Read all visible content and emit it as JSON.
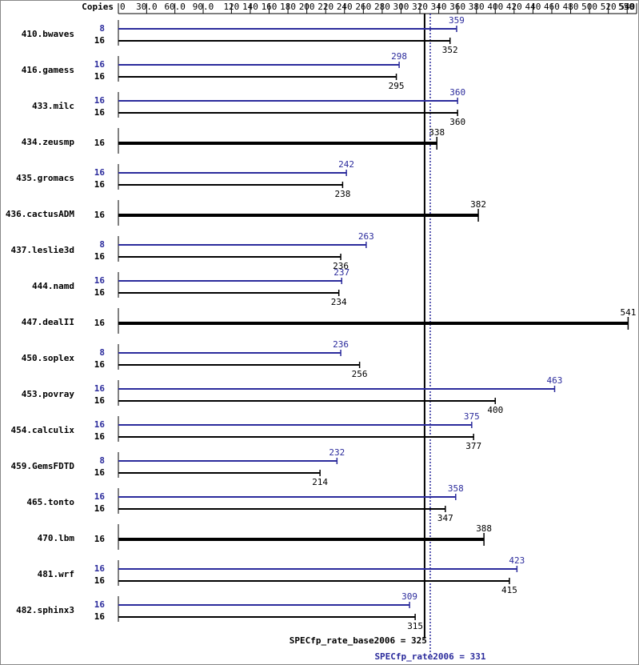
{
  "chart_data": {
    "type": "bar",
    "orientation": "horizontal",
    "x_label": "Copies",
    "xlim": [
      0,
      550
    ],
    "xticks": [
      0,
      {
        "value": 30,
        "label": "30.0"
      },
      {
        "value": 60,
        "label": "60.0"
      },
      {
        "value": 90,
        "label": "90.0"
      },
      120,
      140,
      160,
      180,
      200,
      220,
      240,
      260,
      280,
      300,
      320,
      340,
      360,
      380,
      400,
      420,
      440,
      460,
      480,
      500,
      520,
      540,
      550
    ],
    "categories": [
      "410.bwaves",
      "416.gamess",
      "433.milc",
      "434.zeusmp",
      "435.gromacs",
      "436.cactusADM",
      "437.leslie3d",
      "444.namd",
      "447.dealII",
      "450.soplex",
      "453.povray",
      "454.calculix",
      "459.GemsFDTD",
      "465.tonto",
      "470.lbm",
      "481.wrf",
      "482.sphinx3"
    ],
    "series": [
      {
        "color": "#2b2b9c",
        "copies": [
          8,
          16,
          16,
          null,
          16,
          null,
          8,
          16,
          null,
          8,
          16,
          16,
          8,
          16,
          null,
          16,
          16
        ],
        "values": [
          359,
          298,
          360,
          null,
          242,
          null,
          263,
          237,
          null,
          236,
          463,
          375,
          232,
          358,
          null,
          423,
          309
        ]
      },
      {
        "color": "#000000",
        "copies": [
          16,
          16,
          16,
          16,
          16,
          16,
          16,
          16,
          16,
          16,
          16,
          16,
          16,
          16,
          16,
          16,
          16
        ],
        "values": [
          352,
          295,
          360,
          338,
          238,
          382,
          236,
          234,
          541,
          256,
          400,
          377,
          214,
          347,
          388,
          415,
          315
        ]
      }
    ],
    "reference_lines": [
      {
        "label": "SPECfp_rate_base2006 = 325",
        "value": 325,
        "color": "#000000",
        "style": "solid"
      },
      {
        "label": "SPECfp_rate2006 = 331",
        "value": 331,
        "color": "#2b2b9c",
        "style": "dotted"
      }
    ]
  }
}
